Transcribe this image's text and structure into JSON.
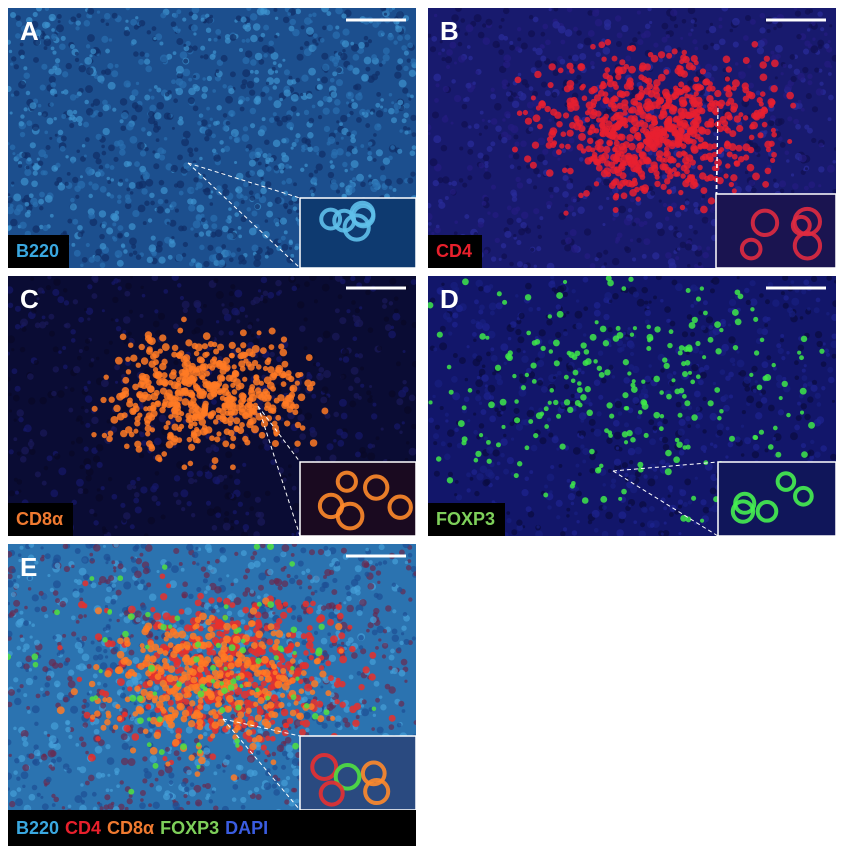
{
  "panels": [
    {
      "letter": "A",
      "label": "B220"
    },
    {
      "letter": "B",
      "label": "CD4"
    },
    {
      "letter": "C",
      "label": "CD8α"
    },
    {
      "letter": "D",
      "label": "FOXP3"
    },
    {
      "letter": "E",
      "legend": [
        "B220",
        "CD4",
        "CD8α",
        "FOXP3",
        "DAPI"
      ]
    }
  ]
}
